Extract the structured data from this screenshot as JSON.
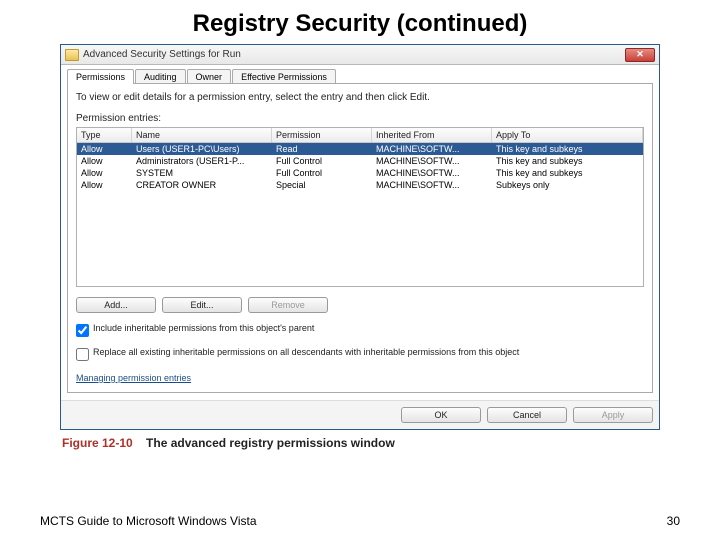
{
  "slide": {
    "title": "Registry Security (continued)",
    "footer_left": "MCTS Guide to Microsoft Windows Vista",
    "page_number": "30"
  },
  "window": {
    "title": "Advanced Security Settings for Run",
    "close_glyph": "✕",
    "tabs": [
      {
        "label": "Permissions",
        "active": true
      },
      {
        "label": "Auditing",
        "active": false
      },
      {
        "label": "Owner",
        "active": false
      },
      {
        "label": "Effective Permissions",
        "active": false
      }
    ],
    "instruction": "To view or edit details for a permission entry, select the entry and then click Edit.",
    "entries_label": "Permission entries:",
    "columns": [
      "Type",
      "Name",
      "Permission",
      "Inherited From",
      "Apply To"
    ],
    "rows": [
      {
        "type": "Allow",
        "name": "Users (USER1-PC\\Users)",
        "permission": "Read",
        "inherited": "MACHINE\\SOFTW...",
        "apply": "This key and subkeys",
        "selected": true
      },
      {
        "type": "Allow",
        "name": "Administrators (USER1-P...",
        "permission": "Full Control",
        "inherited": "MACHINE\\SOFTW...",
        "apply": "This key and subkeys",
        "selected": false
      },
      {
        "type": "Allow",
        "name": "SYSTEM",
        "permission": "Full Control",
        "inherited": "MACHINE\\SOFTW...",
        "apply": "This key and subkeys",
        "selected": false
      },
      {
        "type": "Allow",
        "name": "CREATOR OWNER",
        "permission": "Special",
        "inherited": "MACHINE\\SOFTW...",
        "apply": "Subkeys only",
        "selected": false
      }
    ],
    "buttons": {
      "add": "Add...",
      "edit": "Edit...",
      "remove": "Remove"
    },
    "checkbox1": {
      "checked": true,
      "label": "Include inheritable permissions from this object's parent"
    },
    "checkbox2": {
      "checked": false,
      "label": "Replace all existing inheritable permissions on all descendants with inheritable permissions from this object"
    },
    "link": "Managing permission entries",
    "dialog_buttons": {
      "ok": "OK",
      "cancel": "Cancel",
      "apply": "Apply"
    }
  },
  "figure": {
    "number": "Figure 12-10",
    "text": "The advanced registry permissions window"
  },
  "colors": {
    "selection": "#2c5a94",
    "window_border": "#2b5a8a",
    "close_red": "#c74038",
    "link": "#1a4e8a",
    "figure_red": "#b03028"
  }
}
